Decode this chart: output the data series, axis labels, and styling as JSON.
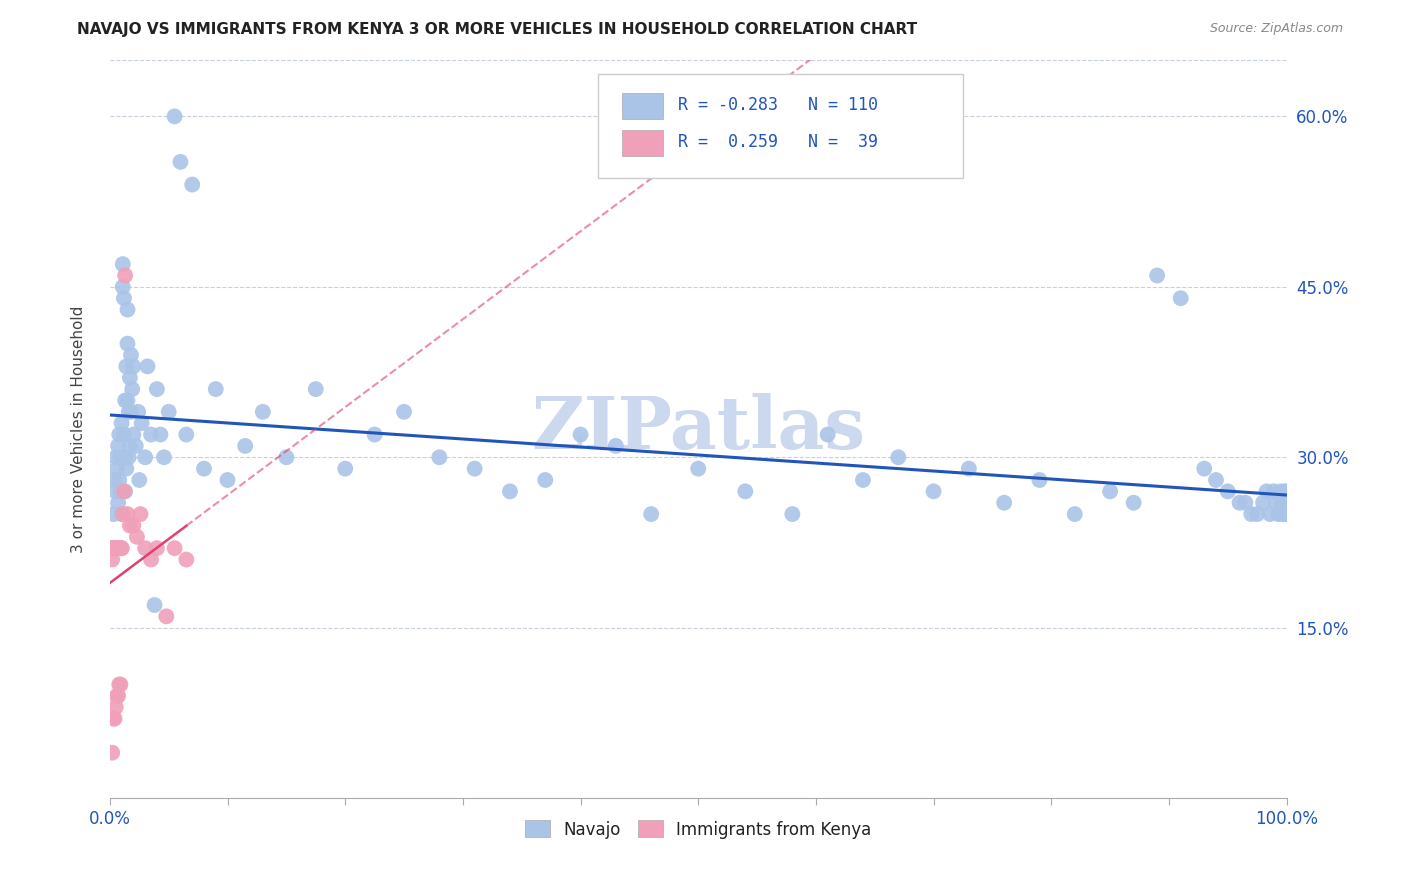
{
  "title": "NAVAJO VS IMMIGRANTS FROM KENYA 3 OR MORE VEHICLES IN HOUSEHOLD CORRELATION CHART",
  "source": "Source: ZipAtlas.com",
  "ylabel": "3 or more Vehicles in Household",
  "ytick_labels": [
    "15.0%",
    "30.0%",
    "45.0%",
    "60.0%"
  ],
  "ytick_values": [
    0.15,
    0.3,
    0.45,
    0.6
  ],
  "navajo_color": "#aac4e8",
  "kenya_color": "#f0a0b8",
  "navajo_line_color": "#2255bb",
  "kenya_line_color": "#e04070",
  "navajo_x": [
    0.003,
    0.004,
    0.005,
    0.005,
    0.006,
    0.007,
    0.007,
    0.008,
    0.008,
    0.009,
    0.009,
    0.01,
    0.01,
    0.01,
    0.011,
    0.011,
    0.012,
    0.012,
    0.013,
    0.013,
    0.013,
    0.014,
    0.014,
    0.015,
    0.015,
    0.015,
    0.016,
    0.016,
    0.017,
    0.017,
    0.018,
    0.018,
    0.019,
    0.02,
    0.02,
    0.022,
    0.024,
    0.025,
    0.027,
    0.03,
    0.032,
    0.035,
    0.038,
    0.04,
    0.043,
    0.046,
    0.05,
    0.055,
    0.06,
    0.065,
    0.07,
    0.08,
    0.09,
    0.1,
    0.115,
    0.13,
    0.15,
    0.175,
    0.2,
    0.225,
    0.25,
    0.28,
    0.31,
    0.34,
    0.37,
    0.4,
    0.43,
    0.46,
    0.5,
    0.54,
    0.58,
    0.61,
    0.64,
    0.67,
    0.7,
    0.73,
    0.76,
    0.79,
    0.82,
    0.85,
    0.87,
    0.89,
    0.91,
    0.93,
    0.94,
    0.95,
    0.96,
    0.965,
    0.97,
    0.975,
    0.98,
    0.983,
    0.986,
    0.989,
    0.991,
    0.993,
    0.995,
    0.996,
    0.997,
    0.998,
    0.999,
    0.999,
    1.0,
    1.0,
    1.0,
    1.0,
    1.0,
    1.0,
    1.0,
    1.0
  ],
  "navajo_y": [
    0.25,
    0.28,
    0.27,
    0.3,
    0.29,
    0.26,
    0.31,
    0.28,
    0.32,
    0.3,
    0.27,
    0.33,
    0.3,
    0.25,
    0.45,
    0.47,
    0.44,
    0.32,
    0.35,
    0.3,
    0.27,
    0.38,
    0.29,
    0.43,
    0.4,
    0.35,
    0.34,
    0.3,
    0.37,
    0.31,
    0.39,
    0.34,
    0.36,
    0.38,
    0.32,
    0.31,
    0.34,
    0.28,
    0.33,
    0.3,
    0.38,
    0.32,
    0.17,
    0.36,
    0.32,
    0.3,
    0.34,
    0.6,
    0.56,
    0.32,
    0.54,
    0.29,
    0.36,
    0.28,
    0.31,
    0.34,
    0.3,
    0.36,
    0.29,
    0.32,
    0.34,
    0.3,
    0.29,
    0.27,
    0.28,
    0.32,
    0.31,
    0.25,
    0.29,
    0.27,
    0.25,
    0.32,
    0.28,
    0.3,
    0.27,
    0.29,
    0.26,
    0.28,
    0.25,
    0.27,
    0.26,
    0.46,
    0.44,
    0.29,
    0.28,
    0.27,
    0.26,
    0.26,
    0.25,
    0.25,
    0.26,
    0.27,
    0.25,
    0.27,
    0.26,
    0.25,
    0.27,
    0.26,
    0.25,
    0.26,
    0.26,
    0.27,
    0.26,
    0.25,
    0.26,
    0.27,
    0.25,
    0.26,
    0.25,
    0.26
  ],
  "kenya_x": [
    0.001,
    0.001,
    0.001,
    0.002,
    0.002,
    0.002,
    0.003,
    0.003,
    0.003,
    0.004,
    0.004,
    0.004,
    0.005,
    0.005,
    0.005,
    0.006,
    0.006,
    0.007,
    0.007,
    0.008,
    0.008,
    0.009,
    0.009,
    0.01,
    0.01,
    0.011,
    0.012,
    0.013,
    0.015,
    0.017,
    0.02,
    0.023,
    0.026,
    0.03,
    0.035,
    0.04,
    0.048,
    0.055,
    0.065
  ],
  "kenya_y": [
    0.22,
    0.22,
    0.22,
    0.22,
    0.21,
    0.04,
    0.22,
    0.22,
    0.07,
    0.22,
    0.22,
    0.07,
    0.22,
    0.22,
    0.08,
    0.22,
    0.09,
    0.22,
    0.09,
    0.22,
    0.1,
    0.22,
    0.1,
    0.22,
    0.22,
    0.25,
    0.27,
    0.46,
    0.25,
    0.24,
    0.24,
    0.23,
    0.25,
    0.22,
    0.21,
    0.22,
    0.16,
    0.22,
    0.21
  ],
  "xlim": [
    0.0,
    1.0
  ],
  "ylim": [
    0.0,
    0.65
  ],
  "background_color": "#ffffff",
  "watermark": "ZIPatlas",
  "watermark_color": "#ccd8ee"
}
